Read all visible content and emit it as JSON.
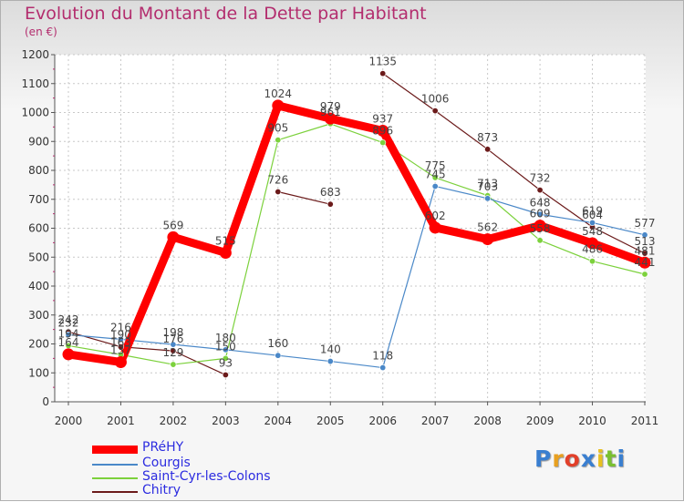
{
  "title": "Evolution du Montant de la Dette par Habitant",
  "unit": "(en €)",
  "logo": {
    "text": "Proxiti",
    "colors": [
      "#3a7fd0",
      "#e8a020",
      "#e2402a",
      "#3a7fd0",
      "#e8c020",
      "#7ac030",
      "#3a7fd0"
    ]
  },
  "chart_data": {
    "type": "line",
    "title": "Evolution du Montant de la Dette par Habitant",
    "ylabel": "(en €)",
    "xlabel": "",
    "ylim": [
      0,
      1200
    ],
    "yticks": [
      0,
      100,
      200,
      300,
      400,
      500,
      600,
      700,
      800,
      900,
      1000,
      1100,
      1200
    ],
    "x": [
      "2000",
      "2001",
      "2002",
      "2003",
      "2004",
      "2005",
      "2006",
      "2007",
      "2008",
      "2009",
      "2010",
      "2011"
    ],
    "grid": true,
    "legend_position": "bottom-left",
    "series": [
      {
        "name": "Chitry",
        "color": "#6b1a1a",
        "width": 1.2,
        "segments": [
          {
            "start": 0,
            "values": [
              242,
              190,
              176,
              93
            ]
          },
          {
            "start": 4,
            "values": [
              726,
              683
            ]
          },
          {
            "start": 6,
            "values": [
              1135,
              1006,
              873,
              732,
              604,
              513
            ]
          }
        ],
        "labels": [
          "242",
          "190",
          "176",
          "93",
          "726",
          "683",
          "1135",
          "1006",
          "873",
          "732",
          "604",
          "513"
        ]
      },
      {
        "name": "Saint-Cyr-les-Colons",
        "color": "#7cd13c",
        "width": 1.2,
        "segments": [
          {
            "start": 0,
            "values": [
              194,
              163,
              129,
              150,
              905,
              961,
              896,
              775,
              713,
              558,
              486,
              441
            ]
          }
        ],
        "labels": [
          "194",
          "163",
          "129",
          "150",
          "905",
          "961",
          "896",
          "775",
          "713",
          "558",
          "486",
          "441"
        ]
      },
      {
        "name": "Courgis",
        "color": "#4a88c8",
        "width": 1.2,
        "segments": [
          {
            "start": 0,
            "values": [
              232,
              216,
              198,
              180,
              160,
              140,
              118,
              745,
              703,
              648,
              619,
              577
            ]
          }
        ],
        "labels": [
          "232",
          "216",
          "198",
          "180",
          "160",
          "140",
          "118",
          "745",
          "703",
          "648",
          "619",
          "577"
        ]
      },
      {
        "name": "PRéHY",
        "color": "#ff0000",
        "width": 9,
        "segments": [
          {
            "start": 0,
            "values": [
              164,
              137,
              569,
              515,
              1024,
              979,
              937,
              602,
              562,
              609,
              548,
              481
            ]
          }
        ],
        "labels": [
          "164",
          "137",
          "569",
          "515",
          "1024",
          "979",
          "937",
          "602",
          "562",
          "609",
          "548",
          "481"
        ]
      }
    ],
    "legend": [
      "PRéHY",
      "Courgis",
      "Saint-Cyr-les-Colons",
      "Chitry"
    ]
  }
}
